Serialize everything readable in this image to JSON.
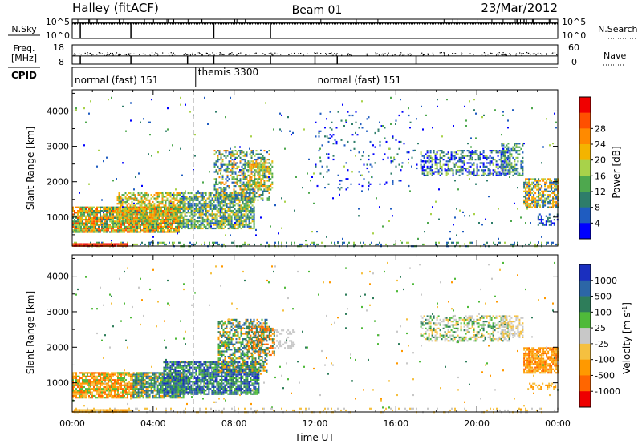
{
  "header": {
    "title": "Halley (fitACF)",
    "beam": "Beam 01",
    "date": "23/Mar/2012"
  },
  "chart_data": [
    {
      "type": "line",
      "panel": "noise",
      "left_label": "N.Sky",
      "right_label": "N.Search",
      "left_ticks": [
        "10^5",
        "10^0"
      ],
      "right_ticks": [
        "10^5",
        "10^0"
      ],
      "xlim": [
        0,
        24
      ],
      "drop_times": [
        0.4,
        2.9,
        7.0,
        9.8
      ],
      "series": [
        {
          "line_style": "solid",
          "level": 0.8
        },
        {
          "line_style": "dotted",
          "level": 0.75
        }
      ]
    },
    {
      "type": "scatter",
      "panel": "frequency",
      "left_label_line1": "Freq.",
      "left_label_line2": "[MHz]",
      "right_label": "Nave",
      "left_ticks": [
        18,
        8
      ],
      "right_ticks": [
        60,
        0
      ],
      "xlim": [
        0,
        24
      ],
      "drop_times": [
        0.4,
        2.9,
        5.7,
        7.0,
        9.8,
        12.0,
        13.1,
        17.0
      ]
    },
    {
      "type": "table",
      "panel": "cpid",
      "label": "CPID",
      "segments": [
        {
          "start": 0,
          "end": 6.1,
          "text": "normal (fast) 151"
        },
        {
          "start": 6.1,
          "end": 12.0,
          "text": "themis 3300"
        },
        {
          "start": 12.0,
          "end": 24,
          "text": "normal (fast) 151"
        }
      ]
    },
    {
      "type": "heatmap",
      "panel": "power",
      "ylabel": "Slant Range [km]",
      "ylim": [
        180,
        4600
      ],
      "yticks": [
        1000,
        2000,
        3000,
        4000
      ],
      "xlim": [
        0,
        24
      ],
      "colorbar_label": "Power [dB]",
      "colorbar_ticks": [
        "4",
        "8",
        "12",
        "16",
        "20",
        "24",
        "28"
      ],
      "colorbar_colors": [
        "#0000ff",
        "#1f5cc0",
        "#2e7d6a",
        "#4ea84e",
        "#a8d24a",
        "#f4b400",
        "#ff8a00",
        "#ff5000",
        "#f00000"
      ],
      "dashed_times": [
        6.0,
        12.0
      ],
      "blobs": [
        {
          "t0": 0.0,
          "t1": 5.3,
          "r0": 600,
          "r1": 1300,
          "density": 0.9,
          "colors": [
            4,
            5,
            6,
            7,
            3,
            2
          ]
        },
        {
          "t0": 2.2,
          "t1": 5.5,
          "r0": 900,
          "r1": 1700,
          "density": 0.6,
          "colors": [
            4,
            5,
            6,
            3
          ]
        },
        {
          "t0": 5.3,
          "t1": 9.0,
          "r0": 700,
          "r1": 1700,
          "density": 0.75,
          "colors": [
            1,
            2,
            3,
            4,
            5
          ]
        },
        {
          "t0": 7.0,
          "t1": 9.7,
          "r0": 1500,
          "r1": 2900,
          "density": 0.45,
          "colors": [
            1,
            2,
            3,
            4,
            6
          ]
        },
        {
          "t0": 8.5,
          "t1": 9.9,
          "r0": 1800,
          "r1": 2600,
          "density": 0.55,
          "colors": [
            3,
            4,
            5,
            6
          ]
        },
        {
          "t0": 17.2,
          "t1": 21.6,
          "r0": 2200,
          "r1": 2900,
          "density": 0.5,
          "colors": [
            0,
            1,
            2,
            4
          ]
        },
        {
          "t0": 21.2,
          "t1": 22.3,
          "r0": 2200,
          "r1": 3100,
          "density": 0.5,
          "colors": [
            1,
            2,
            3,
            4
          ]
        },
        {
          "t0": 22.3,
          "t1": 24.0,
          "r0": 1300,
          "r1": 2100,
          "density": 0.7,
          "colors": [
            1,
            2,
            4,
            5,
            6
          ]
        },
        {
          "t0": 23.0,
          "t1": 24.0,
          "r0": 800,
          "r1": 1100,
          "density": 0.45,
          "colors": [
            0,
            1,
            2
          ]
        },
        {
          "t0": 12.0,
          "t1": 17.0,
          "r0": 1800,
          "r1": 4000,
          "density": 0.05,
          "colors": [
            0,
            1,
            2
          ]
        },
        {
          "t0": 0.0,
          "t1": 24.0,
          "r0": 250,
          "r1": 4400,
          "density": 0.012,
          "colors": [
            0,
            1,
            2,
            3,
            4
          ]
        },
        {
          "t0": 0.0,
          "t1": 24.0,
          "r0": 190,
          "r1": 300,
          "density": 0.25,
          "colors": [
            1,
            2,
            3,
            4
          ]
        },
        {
          "t0": 0.0,
          "t1": 2.7,
          "r0": 190,
          "r1": 260,
          "density": 0.95,
          "colors": [
            8,
            7
          ]
        }
      ]
    },
    {
      "type": "heatmap",
      "panel": "velocity",
      "ylabel": "Slant Range [km]",
      "ylim": [
        180,
        4600
      ],
      "yticks": [
        1000,
        2000,
        3000,
        4000
      ],
      "xlim": [
        0,
        24
      ],
      "xticks": [
        "00:00",
        "04:00",
        "08:00",
        "12:00",
        "16:00",
        "20:00",
        "00:00"
      ],
      "xlabel": "Time UT",
      "colorbar_label": "Velocity [m s^-1]",
      "colorbar_ticks": [
        "1000",
        "500",
        "100",
        "25",
        "-25",
        "-100",
        "-500",
        "-1000"
      ],
      "colorbar_colors": [
        "#1a2fbf",
        "#2c66a6",
        "#2e7d5a",
        "#4fba3a",
        "#c8c8c8",
        "#f5c040",
        "#ff9900",
        "#ff6600",
        "#ee0000"
      ],
      "dashed_times": [
        6.0,
        12.0
      ],
      "blobs": [
        {
          "t0": 0.0,
          "t1": 3.0,
          "r0": 600,
          "r1": 1300,
          "density": 0.85,
          "colors": [
            6,
            7,
            5,
            3
          ]
        },
        {
          "t0": 3.0,
          "t1": 5.5,
          "r0": 600,
          "r1": 1300,
          "density": 0.85,
          "colors": [
            6,
            1,
            2,
            3
          ]
        },
        {
          "t0": 4.5,
          "t1": 9.2,
          "r0": 700,
          "r1": 1600,
          "density": 0.8,
          "colors": [
            1,
            2,
            0,
            3
          ]
        },
        {
          "t0": 7.2,
          "t1": 9.6,
          "r0": 1300,
          "r1": 2800,
          "density": 0.5,
          "colors": [
            2,
            3,
            1,
            6
          ]
        },
        {
          "t0": 8.6,
          "t1": 10.0,
          "r0": 1800,
          "r1": 2600,
          "density": 0.55,
          "colors": [
            6,
            7,
            2
          ]
        },
        {
          "t0": 17.2,
          "t1": 21.6,
          "r0": 2200,
          "r1": 2900,
          "density": 0.45,
          "colors": [
            4,
            3,
            2,
            5
          ]
        },
        {
          "t0": 21.2,
          "t1": 22.3,
          "r0": 2300,
          "r1": 2900,
          "density": 0.55,
          "colors": [
            4,
            4,
            5
          ]
        },
        {
          "t0": 22.3,
          "t1": 24.0,
          "r0": 1300,
          "r1": 2000,
          "density": 0.8,
          "colors": [
            6,
            7,
            6,
            5
          ]
        },
        {
          "t0": 22.5,
          "t1": 24.0,
          "r0": 850,
          "r1": 1000,
          "density": 0.4,
          "colors": [
            5,
            6
          ]
        },
        {
          "t0": 10.0,
          "t1": 11.0,
          "r0": 2000,
          "r1": 2500,
          "density": 0.3,
          "colors": [
            4
          ]
        },
        {
          "t0": 0.0,
          "t1": 24.0,
          "r0": 250,
          "r1": 4400,
          "density": 0.012,
          "colors": [
            2,
            3,
            4,
            5,
            6
          ]
        },
        {
          "t0": 0.0,
          "t1": 24.0,
          "r0": 190,
          "r1": 300,
          "density": 0.2,
          "colors": [
            4,
            5
          ]
        },
        {
          "t0": 0.0,
          "t1": 2.7,
          "r0": 190,
          "r1": 260,
          "density": 0.9,
          "colors": [
            6,
            5
          ]
        }
      ]
    }
  ]
}
